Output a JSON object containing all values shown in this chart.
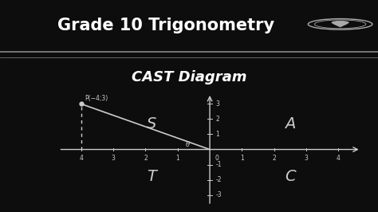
{
  "bg_color": "#0d0d0d",
  "title1": "Grade 10 Trigonometry",
  "title2": "CAST Diagram",
  "title1_color": "#ffffff",
  "title2_color": "#ffffff",
  "axis_color": "#cccccc",
  "label_color": "#cccccc",
  "point_label": "P(−4;3)",
  "point_x": -4,
  "point_y": 3,
  "x_ticks": [
    -4,
    -3,
    -2,
    -1,
    1,
    2,
    3,
    4
  ],
  "y_ticks": [
    -3,
    -2,
    -1,
    1,
    2,
    3
  ],
  "xlim": [
    -4.7,
    4.7
  ],
  "ylim": [
    -3.7,
    3.7
  ],
  "cast_letters": [
    "S",
    "A",
    "T",
    "C"
  ],
  "cast_positions": [
    [
      -1.8,
      1.7
    ],
    [
      2.5,
      1.7
    ],
    [
      -1.8,
      -1.8
    ],
    [
      2.5,
      -1.8
    ]
  ],
  "theta_label": "θ",
  "line_color": "#cccccc",
  "dashed_color": "#cccccc",
  "separator_color": "#888888",
  "icon_color": "#aaaaaa"
}
